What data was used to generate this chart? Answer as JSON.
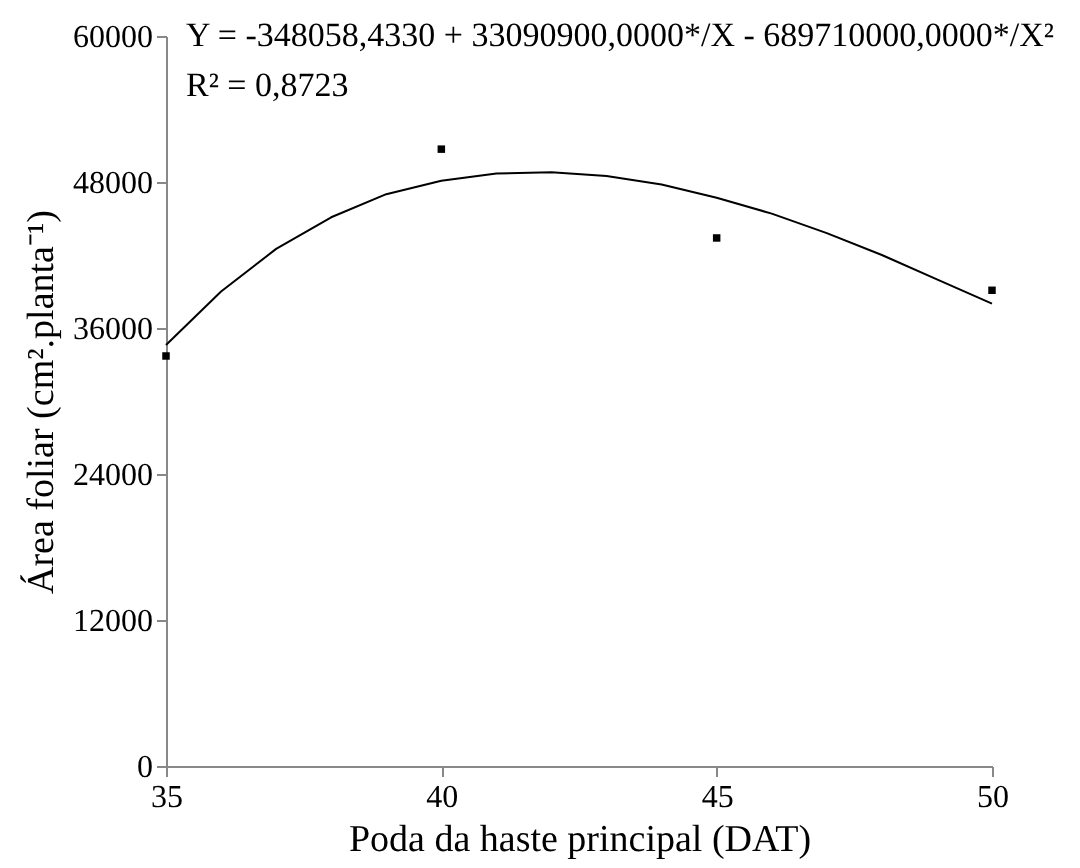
{
  "chart_data": {
    "type": "scatter",
    "xlabel": "Poda da haste principal (DAT)",
    "ylabel": "Área foliar (cm².planta⁻¹)",
    "annotations": [
      "Y = -348058,4330 + 33090900,0000*/X - 689710000,0000*/X²",
      "R² = 0,8723"
    ],
    "x": [
      35,
      40,
      45,
      50
    ],
    "series": [
      {
        "type": "line",
        "color": "#000000",
        "line_style": "solid",
        "x": [
          35,
          36,
          37,
          38,
          39,
          40,
          41,
          42,
          43,
          44,
          45,
          46,
          47,
          48,
          49,
          50
        ],
        "values": [
          34600,
          39000,
          42500,
          45100,
          47000,
          48100,
          48700,
          48800,
          48500,
          47800,
          46700,
          45400,
          43800,
          42000,
          40000,
          38000
        ]
      },
      {
        "type": "scatter",
        "color": "#000000",
        "marker": "square",
        "values": [
          33700,
          50700,
          43400,
          39100
        ]
      }
    ],
    "xlim": [
      35,
      50
    ],
    "xticks": [
      35,
      40,
      45,
      50
    ],
    "ylim": [
      0,
      60000
    ],
    "yticks": [
      0,
      12000,
      24000,
      36000,
      48000,
      60000
    ],
    "grid": false
  }
}
